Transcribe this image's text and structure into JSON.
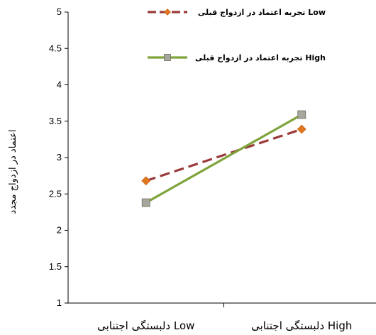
{
  "chart_data": {
    "type": "line",
    "categories": [
      "دلبستگی اجتنابی Low",
      "دلبستگی اجتنابی High"
    ],
    "series": [
      {
        "name": "تجربه اعتماد در ازدواج قبلی Low",
        "values": [
          2.68,
          3.39
        ],
        "color": "#9b3a3a",
        "marker_color": "#e0761f",
        "marker": "diamond",
        "dash": true
      },
      {
        "name": "تجربه اعتماد در ازدواج قبلی High",
        "values": [
          2.38,
          3.59
        ],
        "color": "#7ea33a",
        "marker_color": "#a6a69a",
        "marker": "square",
        "dash": false
      }
    ],
    "yticks": [
      "1",
      "1.5",
      "2",
      "2.5",
      "3",
      "3.5",
      "4",
      "4.5",
      "5"
    ],
    "ylim": [
      1,
      5
    ],
    "ylabel": "اعتماد در ازدواج مجدد",
    "xlabel": "",
    "title": "",
    "grid": false,
    "legend_position": "top-right"
  }
}
